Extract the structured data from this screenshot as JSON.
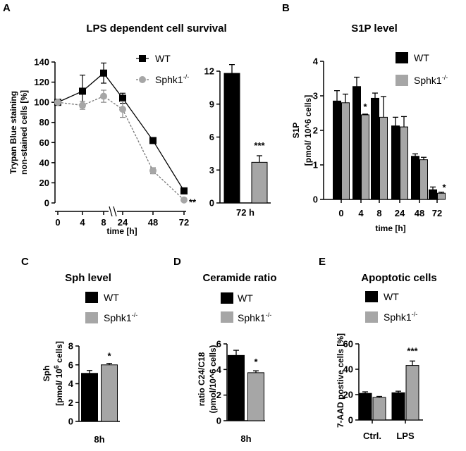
{
  "colors": {
    "wt": "#000000",
    "ko": "#a6a6a6",
    "ko_line": "#777777",
    "axis": "#000000"
  },
  "chart_data": [
    {
      "panel": "A",
      "type": "line",
      "title": "LPS dependent cell survival",
      "xlabel": "time [h]",
      "ylabel": [
        "Trypan Blue staining",
        "non-stained cells [%]"
      ],
      "x": [
        0,
        4,
        8,
        24,
        48,
        72
      ],
      "xticks": [
        "0",
        "4",
        "8",
        "24",
        "48",
        "72"
      ],
      "ylim": [
        0,
        140
      ],
      "yticks": [
        "0",
        "20",
        "40",
        "60",
        "80",
        "100",
        "120",
        "140"
      ],
      "legend": [
        "WT",
        "Sphk1",
        "-/-"
      ],
      "series": [
        {
          "name": "WT",
          "values": [
            100,
            111,
            129,
            104,
            62,
            12
          ],
          "errors": [
            0,
            16,
            10,
            5,
            2,
            1
          ]
        },
        {
          "name": "Sphk1-/-",
          "values": [
            100,
            97,
            106,
            93,
            32,
            3
          ],
          "errors": [
            0,
            4,
            6,
            8,
            3,
            1
          ]
        }
      ],
      "annotations": [
        "**"
      ]
    },
    {
      "panel": "A-inset",
      "type": "bar",
      "categories": [
        "72 h"
      ],
      "ylim": [
        0,
        12
      ],
      "yticks": [
        "0",
        "3",
        "6",
        "9",
        "12"
      ],
      "series": [
        {
          "name": "WT",
          "values": [
            11.8
          ],
          "errors": [
            0.8
          ]
        },
        {
          "name": "Sphk1-/-",
          "values": [
            3.7
          ],
          "errors": [
            0.6
          ]
        }
      ],
      "annotations": [
        "***"
      ]
    },
    {
      "panel": "B",
      "type": "bar",
      "title": "S1P level",
      "xlabel": "time [h]",
      "ylabel": [
        "S1P",
        "[pmol/ 10^6 cells]"
      ],
      "categories": [
        "0",
        "4",
        "8",
        "24",
        "48",
        "72"
      ],
      "ylim": [
        0,
        4
      ],
      "yticks": [
        "0",
        "1",
        "2",
        "3",
        "4"
      ],
      "legend": [
        "WT",
        "Sphk1",
        "-/-"
      ],
      "series": [
        {
          "name": "WT",
          "values": [
            2.85,
            3.27,
            2.93,
            2.13,
            1.25,
            0.28
          ],
          "errors": [
            0.3,
            0.27,
            0.15,
            0.25,
            0.07,
            0.08
          ]
        },
        {
          "name": "Sphk1-/-",
          "values": [
            2.8,
            2.45,
            2.38,
            2.1,
            1.15,
            0.18
          ],
          "errors": [
            0.25,
            0.02,
            0.6,
            0.3,
            0.07,
            0.03
          ]
        }
      ],
      "annotations": [
        "*",
        "*"
      ]
    },
    {
      "panel": "C",
      "type": "bar",
      "title": "Sph level",
      "categories": [
        "8h"
      ],
      "ylabel": [
        "Sph",
        "[pmol/ 10",
        "6",
        " cells]"
      ],
      "ylim": [
        0,
        8
      ],
      "yticks": [
        "0",
        "2",
        "4",
        "6",
        "8"
      ],
      "legend": [
        "WT",
        "Sphk1",
        "-/-"
      ],
      "series": [
        {
          "name": "WT",
          "values": [
            5.1
          ],
          "errors": [
            0.3
          ]
        },
        {
          "name": "Sphk1-/-",
          "values": [
            6.0
          ],
          "errors": [
            0.15
          ]
        }
      ],
      "annotations": [
        "*"
      ]
    },
    {
      "panel": "D",
      "type": "bar",
      "title": "Ceramide ratio",
      "categories": [
        "8h"
      ],
      "ylabel": [
        "ratio C24/C18",
        "(pmol/10^6 cells)"
      ],
      "ylim": [
        0,
        6
      ],
      "yticks": [
        "0",
        "2",
        "4",
        "6"
      ],
      "legend": [
        "WT",
        "Sphk1",
        "-/-"
      ],
      "series": [
        {
          "name": "WT",
          "values": [
            5.1
          ],
          "errors": [
            0.4
          ]
        },
        {
          "name": "Sphk1-/-",
          "values": [
            3.75
          ],
          "errors": [
            0.15
          ]
        }
      ],
      "annotations": [
        "*"
      ]
    },
    {
      "panel": "E",
      "type": "bar",
      "title": "Apoptotic cells",
      "categories": [
        "Ctrl.",
        "LPS"
      ],
      "ylabel": [
        "7-AAD postive cells [%]"
      ],
      "ylim": [
        0,
        60
      ],
      "yticks": [
        "0",
        "20",
        "40",
        "60"
      ],
      "legend": [
        "WT",
        "Sphk1",
        "-/-"
      ],
      "series": [
        {
          "name": "WT",
          "values": [
            21,
            21.5
          ],
          "errors": [
            1.2,
            1.2
          ]
        },
        {
          "name": "Sphk1-/-",
          "values": [
            17.8,
            43
          ],
          "errors": [
            0.8,
            3.5
          ]
        }
      ],
      "annotations": [
        "***"
      ]
    }
  ]
}
